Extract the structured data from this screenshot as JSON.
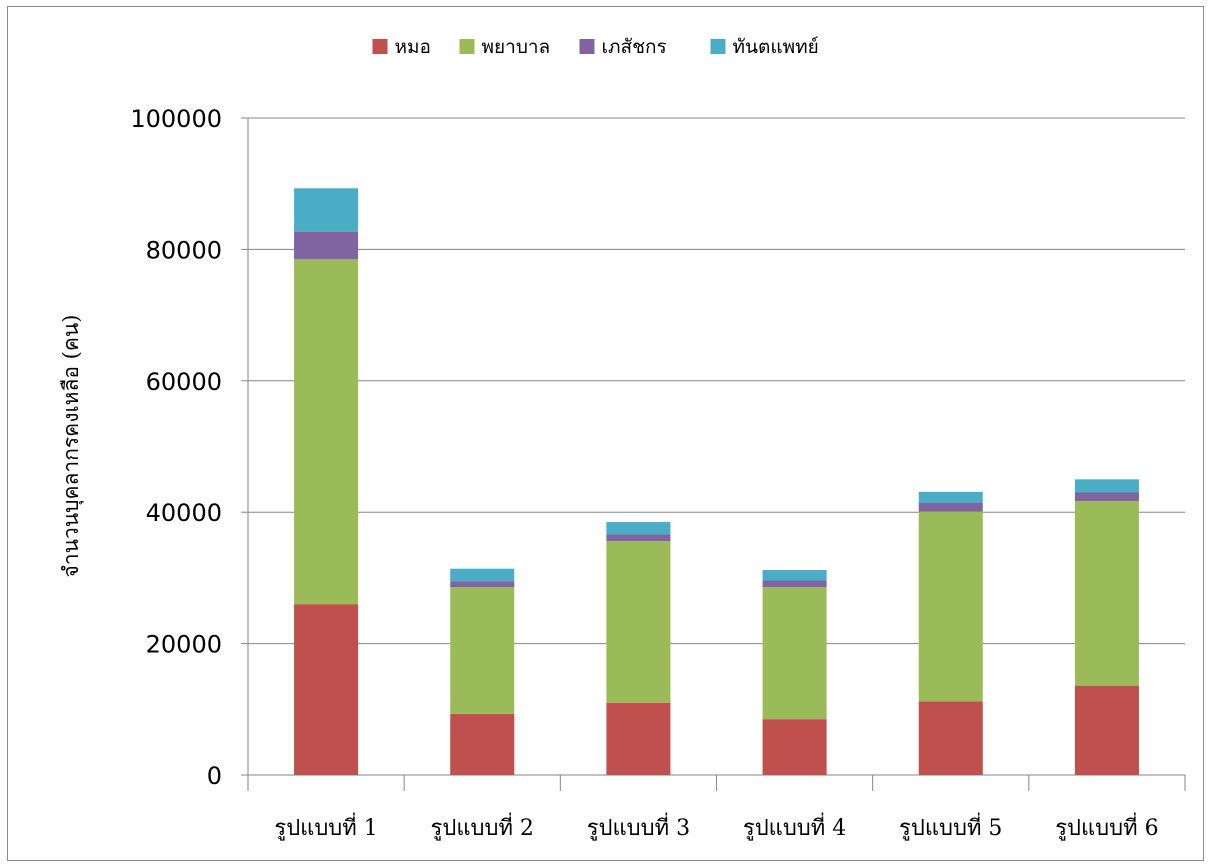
{
  "chart_data": {
    "type": "bar",
    "stacked": true,
    "title": "",
    "xlabel": "",
    "ylabel": "จำนวนบุคลากรคงเหลือ (คน)",
    "ylim": [
      0,
      100000
    ],
    "yticks": [
      0,
      20000,
      40000,
      60000,
      80000,
      100000
    ],
    "grid": true,
    "legend_position": "top",
    "categories": [
      "รูปแบบที่ 1",
      "รูปแบบที่ 2",
      "รูปแบบที่ 3",
      "รูปแบบที่ 4",
      "รูปแบบที่ 5",
      "รูปแบบที่ 6"
    ],
    "series": [
      {
        "name": "หมอ",
        "color": "#c0504d",
        "values": [
          26000,
          9300,
          11000,
          8500,
          11200,
          13600
        ]
      },
      {
        "name": "พยาบาล",
        "color": "#9bbb59",
        "values": [
          52500,
          19300,
          24600,
          20100,
          28900,
          28100
        ]
      },
      {
        "name": "เภสัชกร",
        "color": "#8064a2",
        "values": [
          4200,
          900,
          1000,
          1000,
          1300,
          1300
        ]
      },
      {
        "name": "ทันตแพทย์",
        "color": "#4bacc6",
        "values": [
          6600,
          1900,
          1900,
          1600,
          1700,
          2000
        ]
      }
    ]
  }
}
